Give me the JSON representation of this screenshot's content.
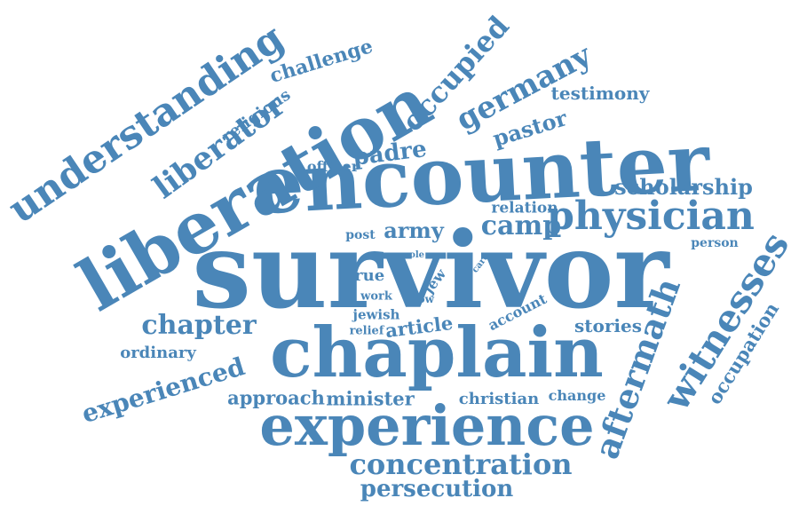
{
  "colors": {
    "word": "#4a86b8",
    "background": "#ffffff"
  },
  "words": [
    {
      "text": "survivor"
    },
    {
      "text": "encounter"
    },
    {
      "text": "liberation"
    },
    {
      "text": "chaplain"
    },
    {
      "text": "experience"
    },
    {
      "text": "understanding"
    },
    {
      "text": "occupied"
    },
    {
      "text": "germany"
    },
    {
      "text": "liberator"
    },
    {
      "text": "challenge"
    },
    {
      "text": "religious"
    },
    {
      "text": "testimony"
    },
    {
      "text": "pastor"
    },
    {
      "text": "padre"
    },
    {
      "text": "officer"
    },
    {
      "text": "scholarship"
    },
    {
      "text": "relation"
    },
    {
      "text": "physician"
    },
    {
      "text": "camp"
    },
    {
      "text": "army"
    },
    {
      "text": "post"
    },
    {
      "text": "person"
    },
    {
      "text": "role"
    },
    {
      "text": "care"
    },
    {
      "text": "true"
    },
    {
      "text": "jew"
    },
    {
      "text": "work"
    },
    {
      "text": "show"
    },
    {
      "text": "jewish"
    },
    {
      "text": "relief"
    },
    {
      "text": "article"
    },
    {
      "text": "account"
    },
    {
      "text": "stories"
    },
    {
      "text": "chapter"
    },
    {
      "text": "ordinary"
    },
    {
      "text": "experienced"
    },
    {
      "text": "aftermath"
    },
    {
      "text": "witnesses"
    },
    {
      "text": "occupation"
    },
    {
      "text": "approach"
    },
    {
      "text": "minister"
    },
    {
      "text": "christian"
    },
    {
      "text": "change"
    },
    {
      "text": "concentration"
    },
    {
      "text": "persecution"
    }
  ]
}
